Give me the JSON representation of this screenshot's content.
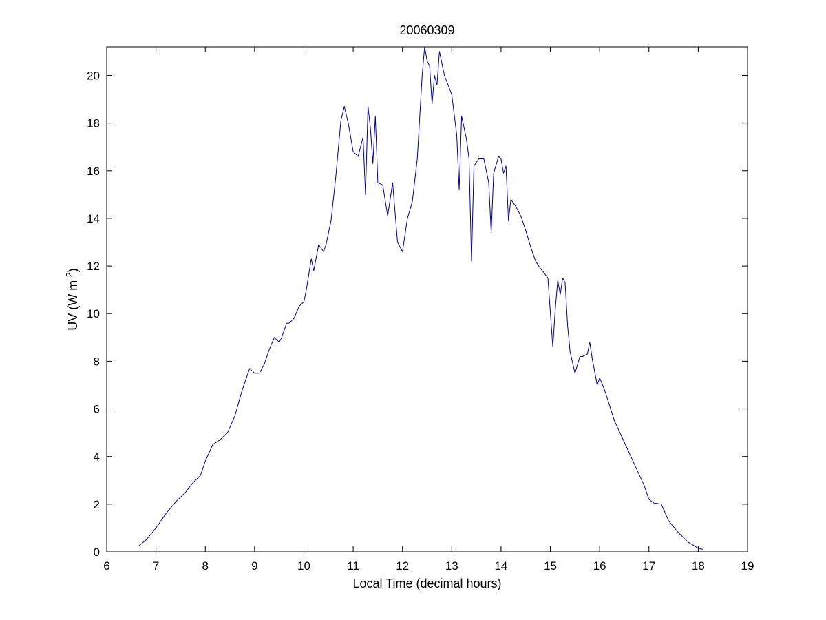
{
  "chart_data": {
    "type": "line",
    "title": "20060309",
    "xlabel": "Local Time (decimal hours)",
    "ylabel": {
      "main": "UV (W m",
      "sup": "-2",
      "close": ")"
    },
    "xlim": [
      6,
      19
    ],
    "ylim": [
      0,
      21.2
    ],
    "xticks": [
      6,
      7,
      8,
      9,
      10,
      11,
      12,
      13,
      14,
      15,
      16,
      17,
      18,
      19
    ],
    "yticks": [
      0,
      2,
      4,
      6,
      8,
      10,
      12,
      14,
      16,
      18,
      20
    ],
    "grid": false,
    "line_color": "#00008b",
    "series": [
      {
        "x": [
          6.65,
          6.8,
          7.0,
          7.2,
          7.4,
          7.6,
          7.75,
          7.9,
          8.0,
          8.15,
          8.3,
          8.45,
          8.6,
          8.75,
          8.9,
          9.0,
          9.1,
          9.2,
          9.3,
          9.4,
          9.5,
          9.55,
          9.65,
          9.7,
          9.8,
          9.9,
          10.0,
          10.05,
          10.15,
          10.2,
          10.3,
          10.4,
          10.45,
          10.55,
          10.65,
          10.75,
          10.82,
          10.9,
          11.0,
          11.1,
          11.2,
          11.25,
          11.3,
          11.35,
          11.4,
          11.45,
          11.5,
          11.6,
          11.7,
          11.8,
          11.9,
          12.0,
          12.1,
          12.2,
          12.3,
          12.4,
          12.45,
          12.5,
          12.55,
          12.6,
          12.65,
          12.7,
          12.75,
          12.85,
          13.0,
          13.1,
          13.15,
          13.2,
          13.3,
          13.35,
          13.4,
          13.45,
          13.55,
          13.65,
          13.75,
          13.8,
          13.85,
          13.95,
          14.0,
          14.05,
          14.1,
          14.15,
          14.2,
          14.3,
          14.4,
          14.5,
          14.6,
          14.7,
          14.8,
          14.95,
          15.05,
          15.1,
          15.15,
          15.2,
          15.25,
          15.3,
          15.35,
          15.4,
          15.5,
          15.6,
          15.65,
          15.75,
          15.8,
          15.85,
          15.95,
          16.0,
          16.1,
          16.3,
          16.5,
          16.7,
          16.9,
          17.0,
          17.1,
          17.25,
          17.4,
          17.6,
          17.8,
          18.0,
          18.1
        ],
        "y": [
          0.25,
          0.5,
          1.0,
          1.6,
          2.1,
          2.5,
          2.9,
          3.2,
          3.8,
          4.5,
          4.7,
          5.0,
          5.7,
          6.8,
          7.7,
          7.5,
          7.5,
          7.9,
          8.5,
          9.0,
          8.8,
          9.0,
          9.6,
          9.6,
          9.8,
          10.3,
          10.5,
          11.0,
          12.3,
          11.8,
          12.9,
          12.6,
          12.9,
          13.9,
          15.8,
          18.1,
          18.7,
          18.0,
          16.8,
          16.6,
          17.4,
          15.0,
          18.7,
          17.8,
          16.3,
          18.3,
          15.5,
          15.4,
          14.1,
          15.5,
          13.0,
          12.6,
          14.0,
          14.7,
          16.5,
          20.0,
          21.2,
          20.6,
          20.4,
          18.8,
          20.0,
          19.6,
          21.0,
          20.0,
          19.2,
          17.5,
          15.2,
          18.3,
          17.3,
          16.5,
          12.2,
          16.2,
          16.5,
          16.5,
          15.5,
          13.4,
          15.9,
          16.6,
          16.5,
          15.9,
          16.2,
          13.9,
          14.8,
          14.5,
          14.1,
          13.5,
          12.8,
          12.2,
          11.9,
          11.5,
          8.6,
          10.2,
          11.4,
          10.8,
          11.5,
          11.3,
          9.5,
          8.4,
          7.5,
          8.2,
          8.2,
          8.3,
          8.8,
          8.1,
          7.0,
          7.3,
          6.8,
          5.5,
          4.6,
          3.7,
          2.8,
          2.2,
          2.05,
          2.0,
          1.3,
          0.8,
          0.4,
          0.15,
          0.1
        ]
      }
    ]
  }
}
